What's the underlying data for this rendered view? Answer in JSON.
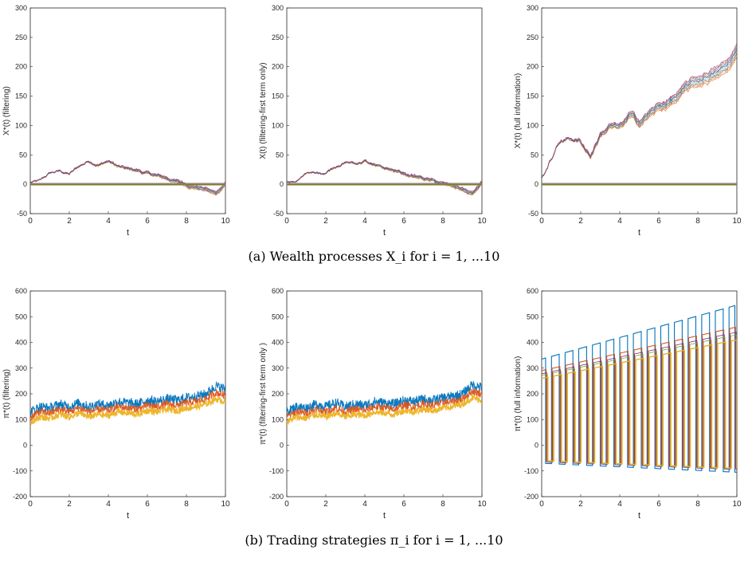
{
  "captions": {
    "a": "(a) Wealth processes X_i for i = 1, ...10",
    "b": "(b) Trading strategies π_i for i = 1, ...10"
  },
  "chart_data": [
    {
      "type": "line",
      "xlabel": "t",
      "ylabel": "X*(t) (filtering)",
      "xlim": [
        0,
        10
      ],
      "ylim": [
        -50,
        300
      ],
      "xticks": [
        0,
        2,
        4,
        6,
        8,
        10
      ],
      "yticks": [
        -50,
        0,
        50,
        100,
        150,
        200,
        250,
        300
      ],
      "x": [
        0,
        0.5,
        1,
        1.5,
        2,
        2.5,
        3,
        3.5,
        4,
        4.5,
        5,
        5.5,
        6,
        6.5,
        7,
        7.5,
        8,
        8.5,
        9,
        9.5,
        10
      ],
      "series": [
        {
          "values": [
            3,
            5,
            18,
            22,
            17,
            30,
            40,
            34,
            40,
            30,
            25,
            23,
            18,
            14,
            10,
            5,
            0,
            -4,
            -8,
            -16,
            2
          ]
        },
        {
          "values": [
            0,
            0,
            0,
            0,
            0,
            0,
            0,
            0,
            0,
            0,
            0,
            0,
            0,
            0,
            0,
            0,
            0,
            0,
            0,
            0,
            0
          ]
        }
      ]
    },
    {
      "type": "line",
      "xlabel": "t",
      "ylabel": "X(t) (filtering-first term only)",
      "xlim": [
        0,
        10
      ],
      "ylim": [
        -50,
        300
      ],
      "xticks": [
        0,
        2,
        4,
        6,
        8,
        10
      ],
      "yticks": [
        -50,
        0,
        50,
        100,
        150,
        200,
        250,
        300
      ],
      "x": [
        0,
        0.5,
        1,
        1.5,
        2,
        2.5,
        3,
        3.5,
        4,
        4.5,
        5,
        5.5,
        6,
        6.5,
        7,
        7.5,
        8,
        8.5,
        9,
        9.5,
        10
      ],
      "series": [
        {
          "values": [
            3,
            5,
            18,
            22,
            18,
            30,
            40,
            34,
            40,
            30,
            26,
            23,
            18,
            14,
            10,
            5,
            0,
            -4,
            -8,
            -17,
            2
          ]
        },
        {
          "values": [
            0,
            0,
            0,
            0,
            0,
            0,
            0,
            0,
            0,
            0,
            0,
            0,
            0,
            0,
            0,
            0,
            0,
            0,
            0,
            0,
            0
          ]
        }
      ]
    },
    {
      "type": "line",
      "xlabel": "t",
      "ylabel": "X*(t) (full information)",
      "xlim": [
        0,
        10
      ],
      "ylim": [
        -50,
        300
      ],
      "xticks": [
        0,
        2,
        4,
        6,
        8,
        10
      ],
      "yticks": [
        -50,
        0,
        50,
        100,
        150,
        200,
        250,
        300
      ],
      "x": [
        0,
        0.5,
        1,
        1.5,
        2,
        2.5,
        3,
        3.5,
        4,
        4.5,
        5,
        5.5,
        6,
        6.5,
        7,
        7.5,
        8,
        8.5,
        9,
        9.5,
        10
      ],
      "series": [
        {
          "values": [
            12,
            45,
            75,
            80,
            72,
            50,
            85,
            100,
            95,
            115,
            105,
            120,
            130,
            140,
            150,
            165,
            175,
            185,
            190,
            200,
            225
          ]
        },
        {
          "values": [
            0,
            0,
            0,
            0,
            0,
            0,
            0,
            0,
            0,
            0,
            0,
            0,
            0,
            0,
            0,
            0,
            0,
            0,
            0,
            0,
            0
          ]
        }
      ]
    },
    {
      "type": "line",
      "xlabel": "t",
      "ylabel": "π*(t) (filtering)",
      "xlim": [
        0,
        10
      ],
      "ylim": [
        -200,
        600
      ],
      "xticks": [
        0,
        2,
        4,
        6,
        8,
        10
      ],
      "yticks": [
        -200,
        -100,
        0,
        100,
        200,
        300,
        400,
        500,
        600
      ],
      "x": [
        0,
        0.5,
        1,
        1.5,
        2,
        2.5,
        3,
        3.5,
        4,
        4.5,
        5,
        5.5,
        6,
        6.5,
        7,
        7.5,
        8,
        8.5,
        9,
        9.5,
        10
      ],
      "series": [
        {
          "values": [
            130,
            150,
            145,
            160,
            150,
            165,
            150,
            160,
            155,
            170,
            165,
            160,
            175,
            170,
            180,
            175,
            185,
            190,
            200,
            230,
            220
          ]
        },
        {
          "values": [
            110,
            130,
            125,
            140,
            130,
            145,
            130,
            140,
            135,
            150,
            145,
            140,
            155,
            150,
            160,
            155,
            165,
            170,
            180,
            205,
            195
          ]
        },
        {
          "values": [
            90,
            110,
            105,
            120,
            110,
            125,
            110,
            120,
            115,
            130,
            125,
            120,
            135,
            130,
            140,
            135,
            145,
            150,
            160,
            180,
            170
          ]
        }
      ]
    },
    {
      "type": "line",
      "xlabel": "t",
      "ylabel": "π*(t) (filtering-first term only )",
      "xlim": [
        0,
        10
      ],
      "ylim": [
        -200,
        600
      ],
      "xticks": [
        0,
        2,
        4,
        6,
        8,
        10
      ],
      "yticks": [
        -200,
        -100,
        0,
        100,
        200,
        300,
        400,
        500,
        600
      ],
      "x": [
        0,
        0.5,
        1,
        1.5,
        2,
        2.5,
        3,
        3.5,
        4,
        4.5,
        5,
        5.5,
        6,
        6.5,
        7,
        7.5,
        8,
        8.5,
        9,
        9.5,
        10
      ],
      "series": [
        {
          "values": [
            130,
            150,
            145,
            160,
            150,
            165,
            150,
            160,
            155,
            170,
            165,
            160,
            175,
            170,
            180,
            175,
            185,
            190,
            200,
            235,
            225
          ]
        },
        {
          "values": [
            110,
            130,
            125,
            140,
            130,
            145,
            130,
            140,
            135,
            150,
            145,
            140,
            155,
            150,
            160,
            155,
            165,
            170,
            180,
            210,
            200
          ]
        },
        {
          "values": [
            90,
            110,
            105,
            120,
            110,
            125,
            110,
            120,
            115,
            130,
            125,
            120,
            135,
            130,
            140,
            135,
            145,
            150,
            160,
            185,
            175
          ]
        }
      ]
    },
    {
      "type": "line",
      "xlabel": "t",
      "ylabel": "π*(t) (full information)",
      "xlim": [
        0,
        10
      ],
      "ylim": [
        -200,
        600
      ],
      "xticks": [
        0,
        2,
        4,
        6,
        8,
        10
      ],
      "yticks": [
        -200,
        -100,
        0,
        100,
        200,
        300,
        400,
        500,
        600
      ],
      "switching": {
        "upper": [
          [
            0,
            335
          ],
          [
            10,
            545
          ]
        ],
        "upper_mid": [
          [
            0,
            290
          ],
          [
            10,
            460
          ]
        ],
        "upper_low": [
          [
            0,
            260
          ],
          [
            10,
            410
          ]
        ],
        "lower": [
          [
            0,
            -60
          ],
          [
            10,
            -90
          ]
        ],
        "lower_deep": [
          [
            0,
            -70
          ],
          [
            10,
            -105
          ]
        ],
        "switch_times": [
          0.2,
          0.5,
          0.9,
          1.2,
          1.6,
          1.9,
          2.3,
          2.6,
          3.0,
          3.3,
          3.7,
          4.0,
          4.4,
          4.7,
          5.1,
          5.4,
          5.8,
          6.1,
          6.5,
          6.8,
          7.2,
          7.5,
          7.9,
          8.2,
          8.6,
          8.9,
          9.3,
          9.6,
          9.9
        ]
      }
    }
  ],
  "colors": {
    "blue": "#0072bd",
    "orange": "#d95319",
    "yellow": "#edb120",
    "purple": "#7e2f8e",
    "green": "#77ac30",
    "cyan": "#4dbeee",
    "red": "#a2142f",
    "gray": "#7f7f7f"
  }
}
